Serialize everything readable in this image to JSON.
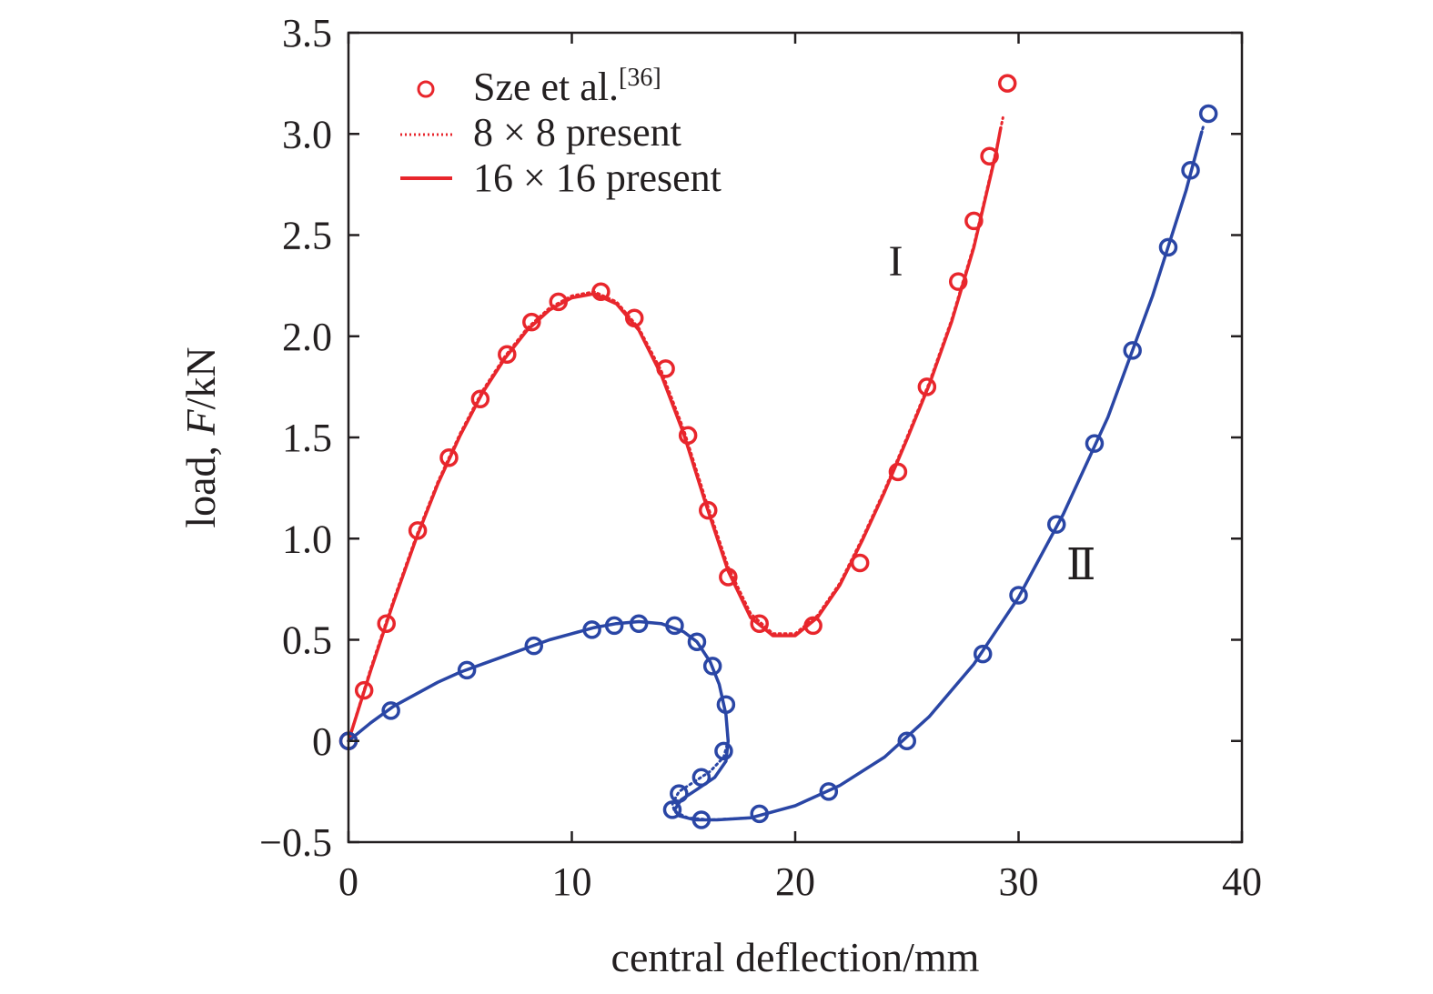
{
  "chart_data": {
    "type": "scatter",
    "xlabel": "central deflection/mm",
    "ylabel_prefix": "load, ",
    "ylabel_var": "F",
    "ylabel_suffix": "/kN",
    "xlim": [
      0,
      40
    ],
    "ylim": [
      -0.5,
      3.5
    ],
    "x_ticks": [
      "0",
      "10",
      "20",
      "30",
      "40"
    ],
    "x_tick_values": [
      0,
      10,
      20,
      30,
      40
    ],
    "y_ticks": [
      "−0.5",
      "0",
      "0.5",
      "1.0",
      "1.5",
      "2.0",
      "2.5",
      "3.0",
      "3.5"
    ],
    "y_tick_values": [
      -0.5,
      0,
      0.5,
      1.0,
      1.5,
      2.0,
      2.5,
      3.0,
      3.5
    ],
    "grid": false,
    "legend_position": "top-left",
    "legend": [
      {
        "label": "Sze et al.",
        "sup": "[36]",
        "style": "marker"
      },
      {
        "label": "8 × 8 present",
        "style": "dotted"
      },
      {
        "label": "16 × 16 present",
        "style": "solid"
      }
    ],
    "annotations": [
      {
        "text": "I",
        "x": 24.5,
        "y": 2.3
      },
      {
        "text": "Ⅱ",
        "x": 32.8,
        "y": 0.8
      }
    ],
    "series": [
      {
        "name": "Sze et al. (curve I)",
        "color": "#e8262c",
        "kind": "marker",
        "points": [
          [
            0,
            0
          ],
          [
            0.7,
            0.25
          ],
          [
            1.7,
            0.58
          ],
          [
            3.1,
            1.04
          ],
          [
            4.5,
            1.4
          ],
          [
            5.9,
            1.69
          ],
          [
            7.1,
            1.91
          ],
          [
            8.2,
            2.07
          ],
          [
            9.4,
            2.17
          ],
          [
            11.3,
            2.22
          ],
          [
            12.8,
            2.09
          ],
          [
            14.2,
            1.84
          ],
          [
            15.2,
            1.51
          ],
          [
            16.1,
            1.14
          ],
          [
            17.0,
            0.81
          ],
          [
            18.4,
            0.58
          ],
          [
            20.8,
            0.57
          ],
          [
            22.9,
            0.88
          ],
          [
            24.6,
            1.33
          ],
          [
            25.9,
            1.75
          ],
          [
            27.3,
            2.27
          ],
          [
            28.0,
            2.57
          ],
          [
            28.7,
            2.89
          ],
          [
            29.5,
            3.25
          ]
        ]
      },
      {
        "name": "8 × 8 present (curve I)",
        "color": "#e8262c",
        "kind": "dotted",
        "points": [
          [
            0,
            0
          ],
          [
            1,
            0.36
          ],
          [
            2,
            0.69
          ],
          [
            3,
            1.0
          ],
          [
            4,
            1.28
          ],
          [
            5,
            1.52
          ],
          [
            6,
            1.73
          ],
          [
            7,
            1.9
          ],
          [
            8,
            2.04
          ],
          [
            9,
            2.14
          ],
          [
            10,
            2.2
          ],
          [
            11,
            2.22
          ],
          [
            12,
            2.17
          ],
          [
            13,
            2.04
          ],
          [
            14,
            1.83
          ],
          [
            15,
            1.54
          ],
          [
            16,
            1.19
          ],
          [
            17,
            0.86
          ],
          [
            18,
            0.63
          ],
          [
            19,
            0.53
          ],
          [
            20,
            0.53
          ],
          [
            21,
            0.62
          ],
          [
            22,
            0.78
          ],
          [
            23,
            1.0
          ],
          [
            24,
            1.24
          ],
          [
            25,
            1.5
          ],
          [
            26,
            1.77
          ],
          [
            27,
            2.08
          ],
          [
            28,
            2.45
          ],
          [
            29,
            2.92
          ],
          [
            29.3,
            3.08
          ]
        ]
      },
      {
        "name": "16 × 16 present (curve I)",
        "color": "#e8262c",
        "kind": "solid",
        "points": [
          [
            0,
            0
          ],
          [
            1,
            0.35
          ],
          [
            2,
            0.68
          ],
          [
            3,
            0.99
          ],
          [
            4,
            1.27
          ],
          [
            5,
            1.51
          ],
          [
            6,
            1.72
          ],
          [
            7,
            1.89
          ],
          [
            8,
            2.03
          ],
          [
            9,
            2.13
          ],
          [
            10,
            2.19
          ],
          [
            11,
            2.21
          ],
          [
            12,
            2.16
          ],
          [
            13,
            2.03
          ],
          [
            14,
            1.81
          ],
          [
            15,
            1.52
          ],
          [
            16,
            1.17
          ],
          [
            17,
            0.84
          ],
          [
            18,
            0.61
          ],
          [
            19,
            0.52
          ],
          [
            20,
            0.52
          ],
          [
            21,
            0.61
          ],
          [
            22,
            0.77
          ],
          [
            23,
            0.99
          ],
          [
            24,
            1.23
          ],
          [
            25,
            1.49
          ],
          [
            26,
            1.76
          ],
          [
            27,
            2.07
          ],
          [
            28,
            2.44
          ],
          [
            29,
            2.91
          ],
          [
            29.2,
            3.03
          ]
        ]
      },
      {
        "name": "Sze et al. (curve II)",
        "color": "#2a46a5",
        "kind": "marker",
        "points": [
          [
            0,
            0
          ],
          [
            1.9,
            0.15
          ],
          [
            5.3,
            0.35
          ],
          [
            8.3,
            0.47
          ],
          [
            10.9,
            0.55
          ],
          [
            11.9,
            0.57
          ],
          [
            13.0,
            0.58
          ],
          [
            14.6,
            0.57
          ],
          [
            15.6,
            0.49
          ],
          [
            16.3,
            0.37
          ],
          [
            16.9,
            0.18
          ],
          [
            16.8,
            -0.05
          ],
          [
            15.8,
            -0.18
          ],
          [
            14.8,
            -0.26
          ],
          [
            14.5,
            -0.34
          ],
          [
            15.8,
            -0.39
          ],
          [
            18.4,
            -0.36
          ],
          [
            21.5,
            -0.25
          ],
          [
            25.0,
            0.0
          ],
          [
            28.4,
            0.43
          ],
          [
            30.0,
            0.72
          ],
          [
            31.7,
            1.07
          ],
          [
            33.4,
            1.47
          ],
          [
            35.1,
            1.93
          ],
          [
            36.7,
            2.44
          ],
          [
            37.7,
            2.82
          ],
          [
            38.5,
            3.1
          ]
        ]
      },
      {
        "name": "8 × 8 present (curve II)",
        "color": "#2a46a5",
        "kind": "dotted",
        "points": [
          [
            0,
            0
          ],
          [
            1,
            0.09
          ],
          [
            2,
            0.17
          ],
          [
            3,
            0.23
          ],
          [
            4,
            0.29
          ],
          [
            5,
            0.34
          ],
          [
            6,
            0.38
          ],
          [
            7,
            0.42
          ],
          [
            8,
            0.46
          ],
          [
            9,
            0.5
          ],
          [
            10,
            0.53
          ],
          [
            11,
            0.56
          ],
          [
            12,
            0.58
          ],
          [
            13,
            0.59
          ],
          [
            14,
            0.58
          ],
          [
            15,
            0.54
          ],
          [
            15.6,
            0.49
          ],
          [
            16.2,
            0.39
          ],
          [
            16.6,
            0.28
          ],
          [
            16.9,
            0.13
          ],
          [
            17.0,
            0.0
          ],
          [
            16.8,
            -0.08
          ],
          [
            16.2,
            -0.15
          ],
          [
            15.5,
            -0.2
          ],
          [
            14.8,
            -0.25
          ],
          [
            14.5,
            -0.31
          ],
          [
            14.6,
            -0.35
          ],
          [
            15.2,
            -0.38
          ],
          [
            16.2,
            -0.39
          ],
          [
            18,
            -0.38
          ],
          [
            20,
            -0.32
          ],
          [
            22,
            -0.22
          ],
          [
            24,
            -0.08
          ],
          [
            26,
            0.12
          ],
          [
            28,
            0.38
          ],
          [
            30,
            0.71
          ],
          [
            32,
            1.12
          ],
          [
            34,
            1.6
          ],
          [
            36,
            2.2
          ],
          [
            37.5,
            2.72
          ],
          [
            38.3,
            3.05
          ]
        ]
      },
      {
        "name": "16 × 16 present (curve II)",
        "color": "#2a46a5",
        "kind": "solid",
        "points": [
          [
            0,
            0
          ],
          [
            1,
            0.09
          ],
          [
            2,
            0.17
          ],
          [
            3,
            0.23
          ],
          [
            4,
            0.29
          ],
          [
            5,
            0.34
          ],
          [
            6,
            0.38
          ],
          [
            7,
            0.42
          ],
          [
            8,
            0.46
          ],
          [
            9,
            0.5
          ],
          [
            10,
            0.53
          ],
          [
            11,
            0.56
          ],
          [
            12,
            0.58
          ],
          [
            13,
            0.59
          ],
          [
            14,
            0.58
          ],
          [
            15,
            0.54
          ],
          [
            15.6,
            0.49
          ],
          [
            16.2,
            0.39
          ],
          [
            16.6,
            0.28
          ],
          [
            16.9,
            0.13
          ],
          [
            17.0,
            0.0
          ],
          [
            16.9,
            -0.1
          ],
          [
            16.4,
            -0.18
          ],
          [
            15.6,
            -0.24
          ],
          [
            14.9,
            -0.29
          ],
          [
            14.6,
            -0.34
          ],
          [
            14.8,
            -0.37
          ],
          [
            15.5,
            -0.39
          ],
          [
            16.5,
            -0.39
          ],
          [
            18,
            -0.38
          ],
          [
            20,
            -0.32
          ],
          [
            22,
            -0.22
          ],
          [
            24,
            -0.08
          ],
          [
            26,
            0.12
          ],
          [
            28,
            0.38
          ],
          [
            30,
            0.71
          ],
          [
            32,
            1.12
          ],
          [
            34,
            1.6
          ],
          [
            36,
            2.2
          ],
          [
            37.5,
            2.72
          ],
          [
            38.2,
            3.01
          ]
        ]
      }
    ]
  }
}
